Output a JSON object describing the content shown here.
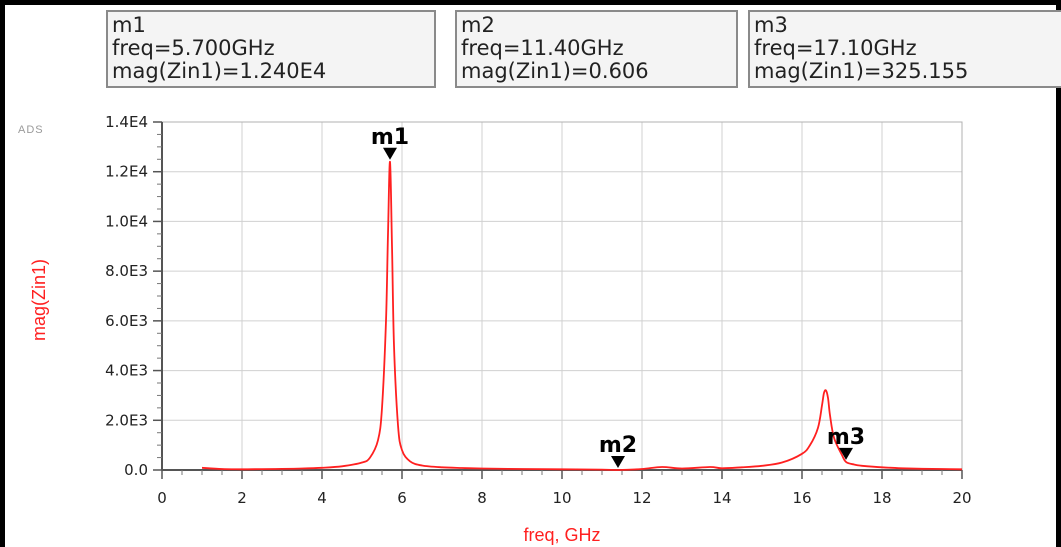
{
  "brand_tag": "ADS",
  "markers": [
    {
      "name": "m1",
      "freq_line": "freq=5.700GHz",
      "mag_line": "mag(Zin1)=1.240E4"
    },
    {
      "name": "m2",
      "freq_line": "freq=11.40GHz",
      "mag_line": "mag(Zin1)=0.606"
    },
    {
      "name": "m3",
      "freq_line": "freq=17.10GHz",
      "mag_line": "mag(Zin1)=325.155"
    }
  ],
  "chart_data": {
    "type": "line",
    "title": "",
    "xlabel": "freq, GHz",
    "ylabel": "mag(Zin1)",
    "xlim": [
      0,
      20
    ],
    "ylim": [
      0,
      14000
    ],
    "x_ticks": [
      "0",
      "2",
      "4",
      "6",
      "8",
      "10",
      "12",
      "14",
      "16",
      "18",
      "20"
    ],
    "y_ticks": [
      "0.0",
      "2.0E3",
      "4.0E3",
      "6.0E3",
      "8.0E3",
      "1.0E4",
      "1.2E4",
      "1.4E4"
    ],
    "grid": true,
    "series_color": "#ff2020",
    "marker_color": "#000000",
    "series": [
      {
        "x": [
          1.0,
          1.5,
          2.0,
          2.5,
          3.0,
          3.5,
          4.0,
          4.5,
          5.0,
          5.2,
          5.4,
          5.5,
          5.6,
          5.65,
          5.7,
          5.75,
          5.8,
          5.9,
          6.0,
          6.2,
          6.5,
          7.0,
          7.5,
          8.0,
          9.0,
          10.0,
          11.0,
          11.4,
          12.0,
          12.5,
          13.0,
          13.7,
          14.0,
          14.5,
          15.0,
          15.5,
          16.0,
          16.2,
          16.4,
          16.5,
          16.55,
          16.6,
          16.65,
          16.7,
          16.8,
          17.0,
          17.1,
          17.3,
          17.5,
          18.0,
          18.5,
          19.0,
          19.5,
          20.0
        ],
        "y": [
          90,
          40,
          30,
          35,
          45,
          60,
          90,
          150,
          300,
          500,
          1200,
          2500,
          6000,
          9500,
          12400,
          9000,
          5000,
          1800,
          800,
          350,
          180,
          110,
          80,
          60,
          40,
          30,
          15,
          0.606,
          40,
          120,
          60,
          120,
          70,
          110,
          170,
          300,
          650,
          1000,
          1700,
          2600,
          3100,
          3200,
          2900,
          2200,
          1300,
          600,
          325,
          220,
          170,
          110,
          70,
          50,
          40,
          30
        ]
      }
    ],
    "markers": [
      {
        "label": "m1",
        "x": 5.7,
        "y": 12400
      },
      {
        "label": "m2",
        "x": 11.4,
        "y": 0.606
      },
      {
        "label": "m3",
        "x": 17.1,
        "y": 325.155
      }
    ]
  }
}
